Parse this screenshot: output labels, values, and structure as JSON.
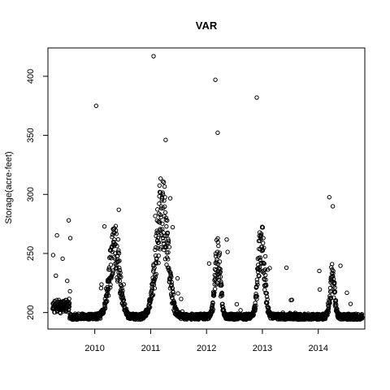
{
  "chart_data": {
    "type": "scatter",
    "title": "VAR",
    "xlabel": "",
    "ylabel": "Storage(acre-feet)",
    "x_ticks": [
      "2010",
      "2011",
      "2012",
      "2013",
      "2014"
    ],
    "y_ticks": [
      200,
      250,
      300,
      350,
      400
    ],
    "xlim": [
      "2009-03-01",
      "2014-11-01"
    ],
    "ylim": [
      186,
      424
    ],
    "grid": false,
    "marker": "open-circle",
    "x": [],
    "y": []
  }
}
